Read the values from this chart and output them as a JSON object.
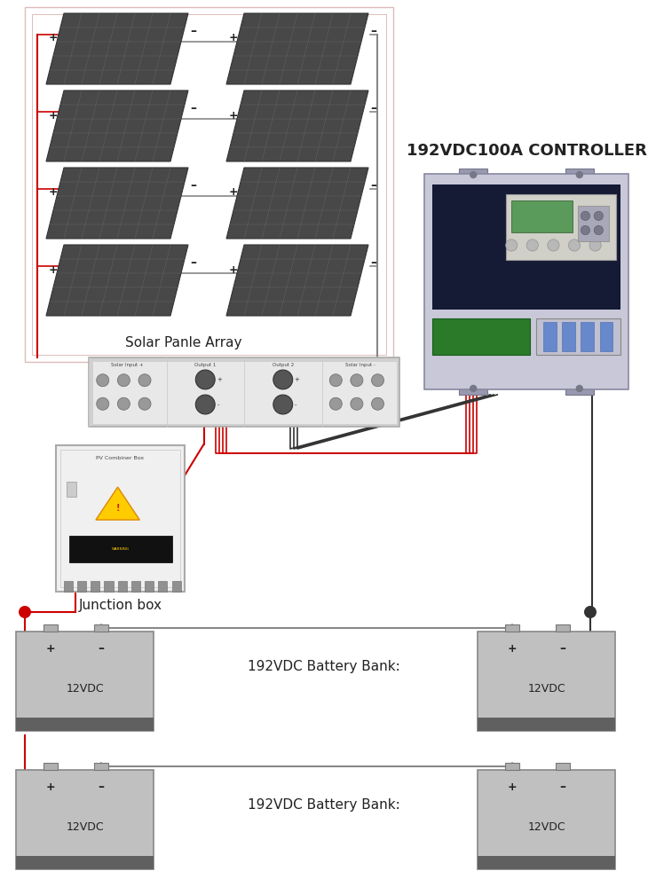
{
  "title": "192VDC100A CONTROLLER",
  "solar_array_label": "Solar Panle Array",
  "junction_box_label": "Junction box",
  "battery_bank1_label": "192VDC Battery Bank:",
  "battery_bank2_label": "192VDC Battery Bank:",
  "battery_label": "12VDC",
  "bg_color": "#ffffff",
  "panel_dark": "#484848",
  "panel_edge": "#333333",
  "panel_grid": "#666666",
  "wire_red": "#cc0000",
  "wire_black": "#333333",
  "wire_gray": "#888888",
  "battery_body": "#c0c0c0",
  "battery_base": "#606060",
  "battery_term": "#aaaaaa",
  "controller_body": "#c8c8d8",
  "controller_dark": "#151a35",
  "controller_green": "#2a7a2a",
  "controller_bracket": "#9898b0",
  "junction_color": "#e8e8e8",
  "combiner_color": "#d0d0d0",
  "array_border": "#dddddd",
  "text_dark": "#222222",
  "text_mid": "#444444"
}
